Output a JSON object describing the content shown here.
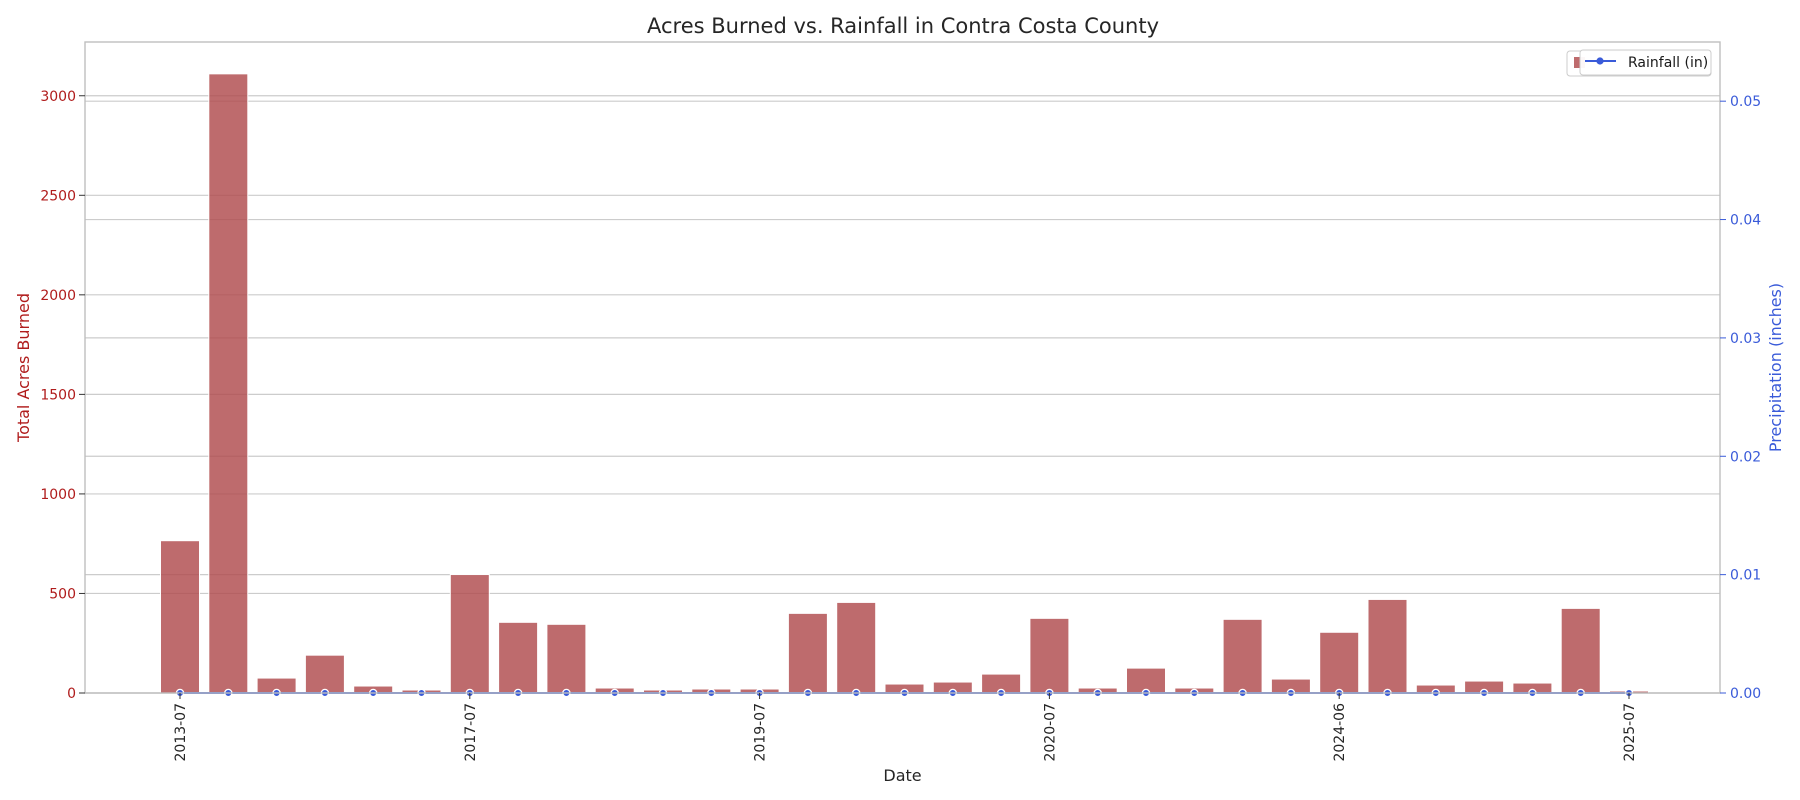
{
  "chart_data": {
    "type": "bar",
    "title": "Acres Burned vs. Rainfall in Contra Costa County",
    "xlabel": "Date",
    "ylabel_left": "Total Acres Burned",
    "ylabel_right": "Precipitation (inches)",
    "categories": [
      "2013-07",
      "",
      "",
      "",
      "",
      "",
      "2017-07",
      "",
      "",
      "",
      "",
      "",
      "2019-07",
      "",
      "",
      "",
      "",
      "",
      "2020-07",
      "",
      "",
      "",
      "",
      "",
      "2024-06",
      "",
      "",
      "",
      "",
      "",
      "2025-07"
    ],
    "series": [
      {
        "name": "",
        "axis": "left",
        "kind": "bar",
        "values": [
          765,
          3110,
          75,
          190,
          35,
          15,
          595,
          355,
          345,
          25,
          15,
          20,
          20,
          400,
          455,
          45,
          55,
          95,
          375,
          25,
          125,
          25,
          370,
          70,
          305,
          470,
          40,
          60,
          50,
          425,
          10
        ]
      },
      {
        "name": "Rainfall (in)",
        "axis": "right",
        "kind": "line",
        "values": [
          0,
          0,
          0,
          0,
          0,
          0,
          0,
          0,
          0,
          0,
          0,
          0,
          0,
          0,
          0,
          0,
          0,
          0,
          0,
          0,
          0,
          0,
          0,
          0,
          0,
          0,
          0,
          0,
          0,
          0,
          0
        ]
      }
    ],
    "ylim_left": [
      0,
      3270
    ],
    "yticks_left": [
      0,
      500,
      1000,
      1500,
      2000,
      2500,
      3000
    ],
    "ylim_right": [
      0,
      0.055
    ],
    "yticks_right": [
      0.0,
      0.01,
      0.02,
      0.03,
      0.04,
      0.05
    ],
    "yticks_right_labels": [
      "0.00",
      "0.01",
      "0.02",
      "0.03",
      "0.04",
      "0.05"
    ],
    "grid": true,
    "legend_position": "top-right",
    "colors": {
      "bar": "#b04b4d",
      "line": "#3a5bd9",
      "left_axis": "#b01c1c",
      "right_axis": "#3a5bd9",
      "grid": "#cccccc",
      "frame": "#bfbfbf",
      "text": "#262626"
    }
  }
}
